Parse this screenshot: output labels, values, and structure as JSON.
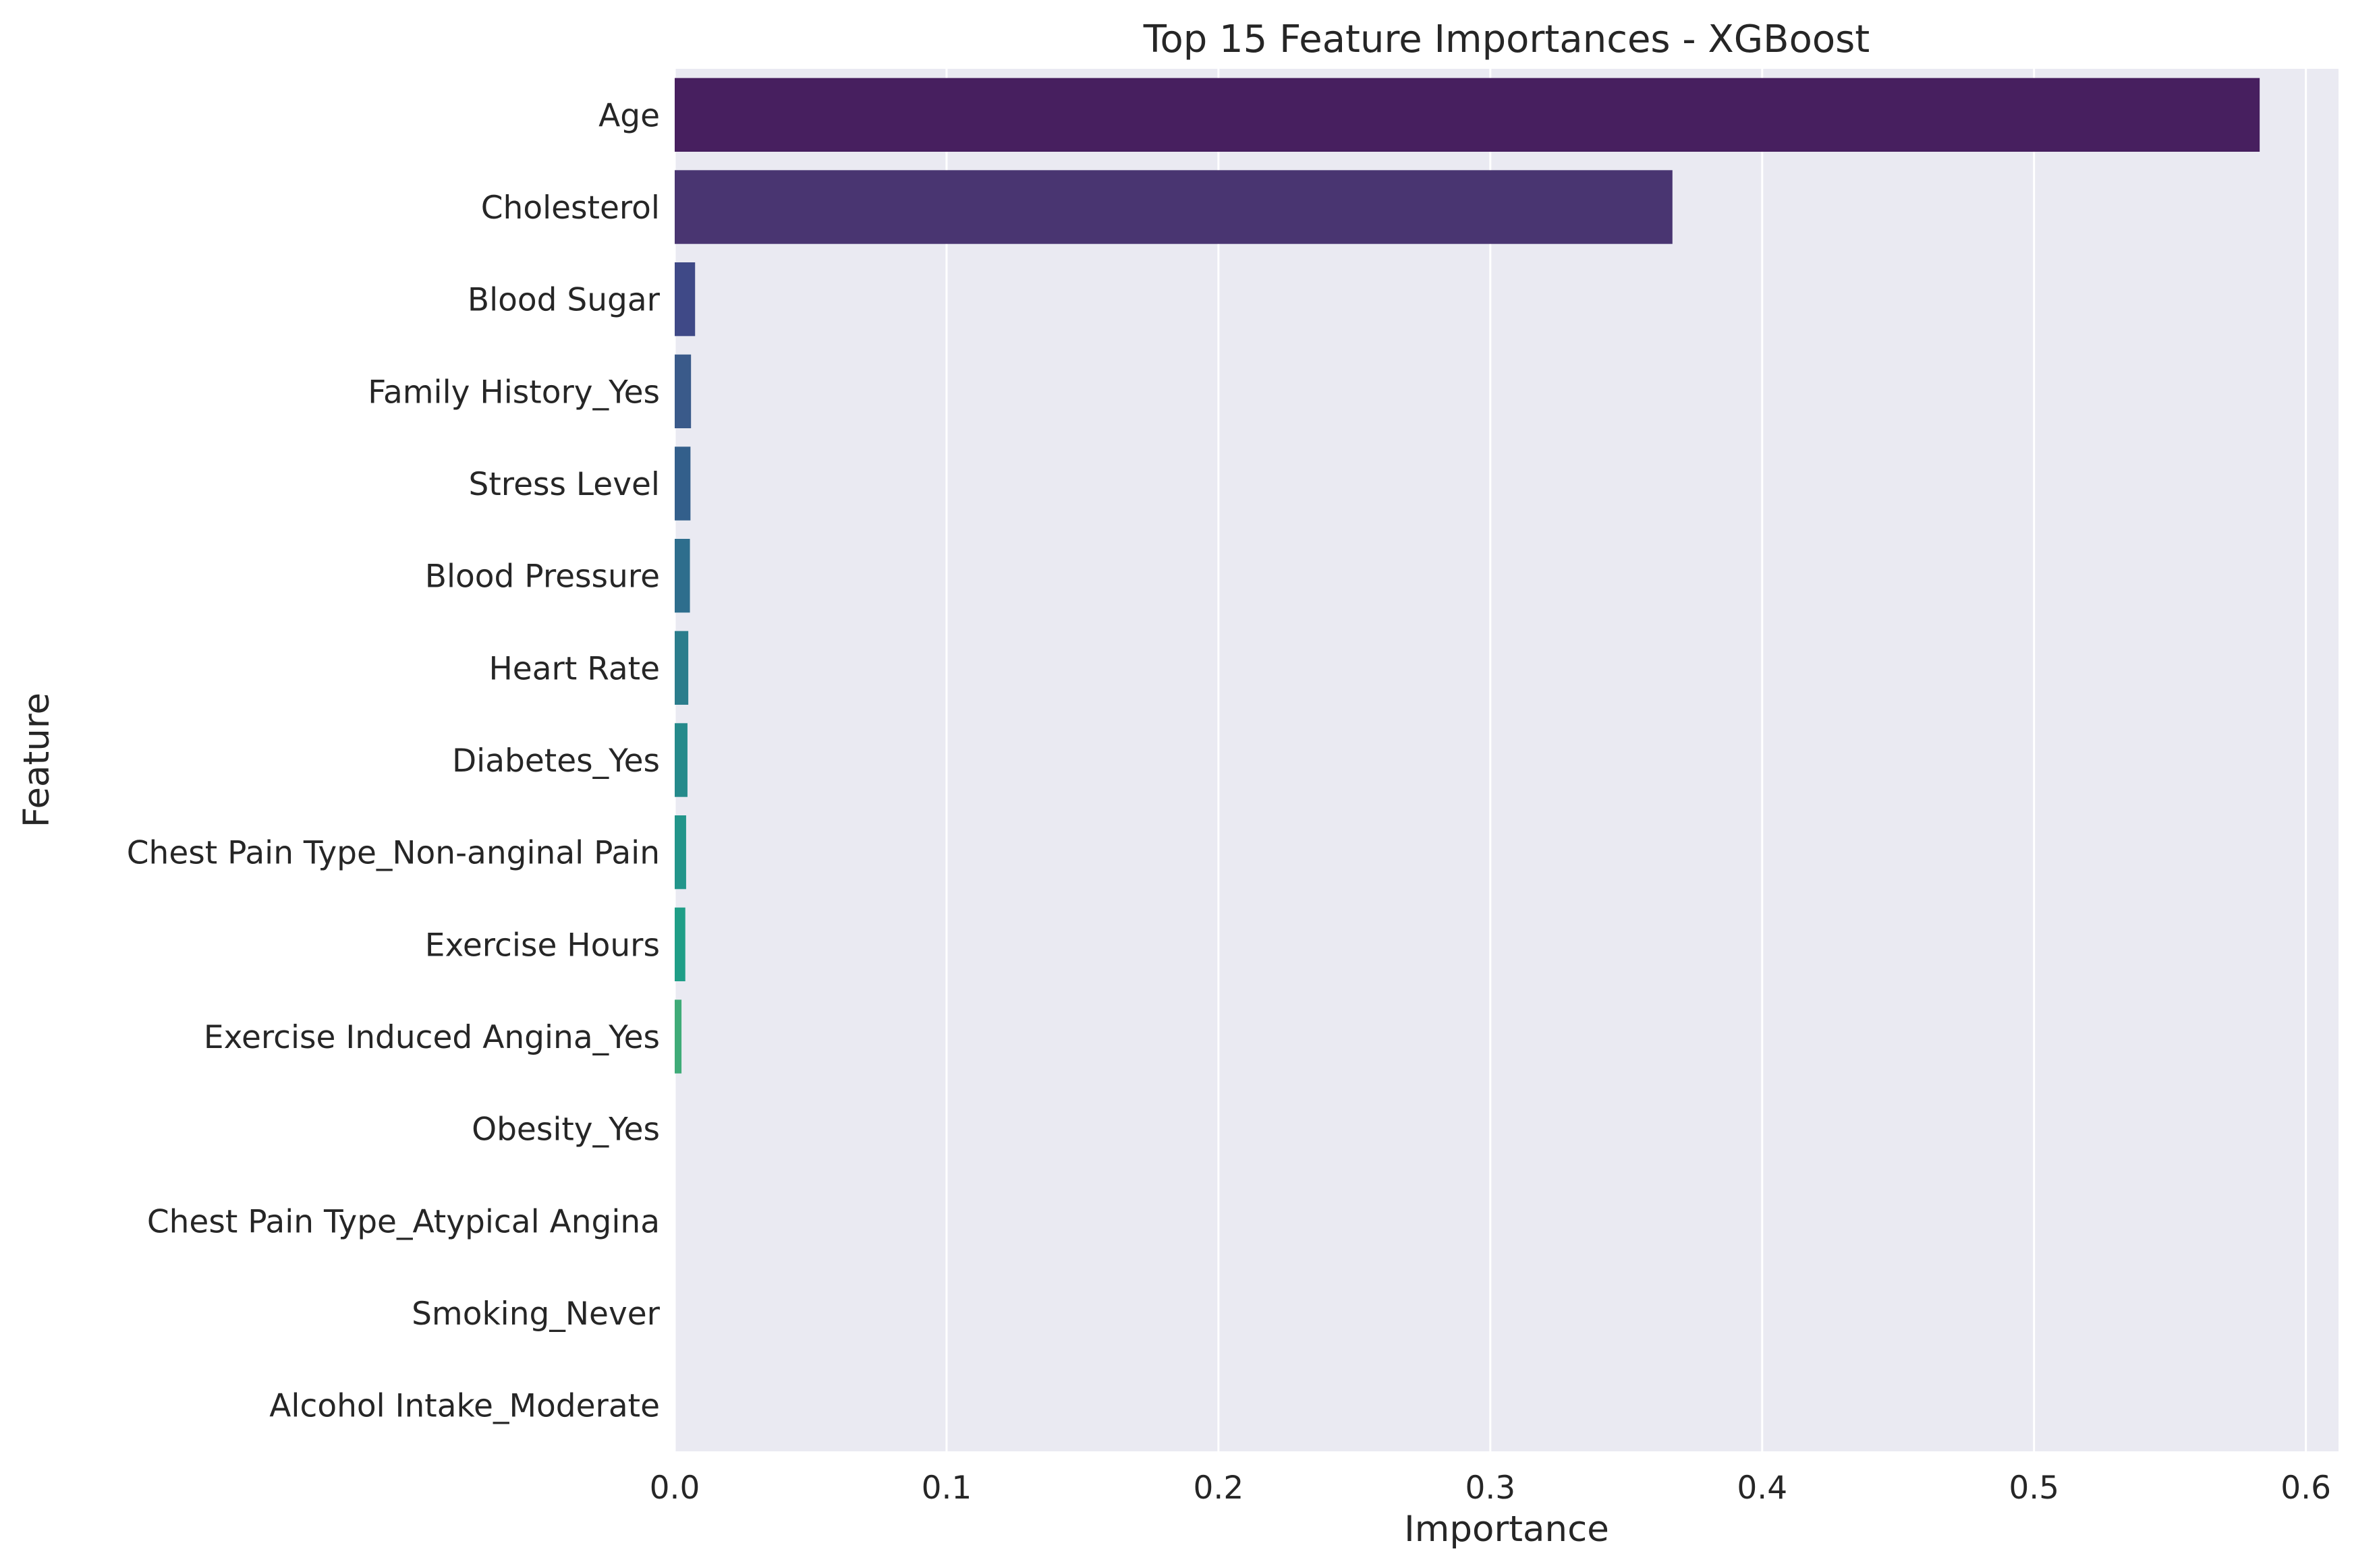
{
  "chart_data": {
    "type": "bar",
    "orientation": "horizontal",
    "title": "Top 15 Feature Importances - XGBoost",
    "xlabel": "Importance",
    "ylabel": "Feature",
    "xlim": [
      0,
      0.612
    ],
    "xticks": [
      0.0,
      0.1,
      0.2,
      0.3,
      0.4,
      0.5,
      0.6
    ],
    "xtick_labels": [
      "0.0",
      "0.1",
      "0.2",
      "0.3",
      "0.4",
      "0.5",
      "0.6"
    ],
    "grid": true,
    "palette": "viridis",
    "background_color": "#eaeaf2",
    "categories": [
      "Age",
      "Cholesterol",
      "Blood Sugar",
      "Family History_Yes",
      "Stress Level",
      "Blood Pressure",
      "Heart Rate",
      "Diabetes_Yes",
      "Chest Pain Type_Non-anginal Pain",
      "Exercise Hours",
      "Exercise Induced Angina_Yes",
      "Obesity_Yes",
      "Chest Pain Type_Atypical Angina",
      "Smoking_Never",
      "Alcohol Intake_Moderate"
    ],
    "values": [
      0.583,
      0.367,
      0.0075,
      0.006,
      0.0058,
      0.0056,
      0.005,
      0.0047,
      0.0042,
      0.0039,
      0.0025,
      0,
      0,
      0,
      0
    ],
    "colors": [
      "#471f5f",
      "#493571",
      "#3f4987",
      "#3a5a8a",
      "#335f8b",
      "#2e6e8d",
      "#2b7d8c",
      "#258a8b",
      "#22958a",
      "#1f9e87",
      "#3fab78",
      "#64b866",
      "#8fc452",
      "#b6d33e",
      "#dfe52e"
    ]
  }
}
